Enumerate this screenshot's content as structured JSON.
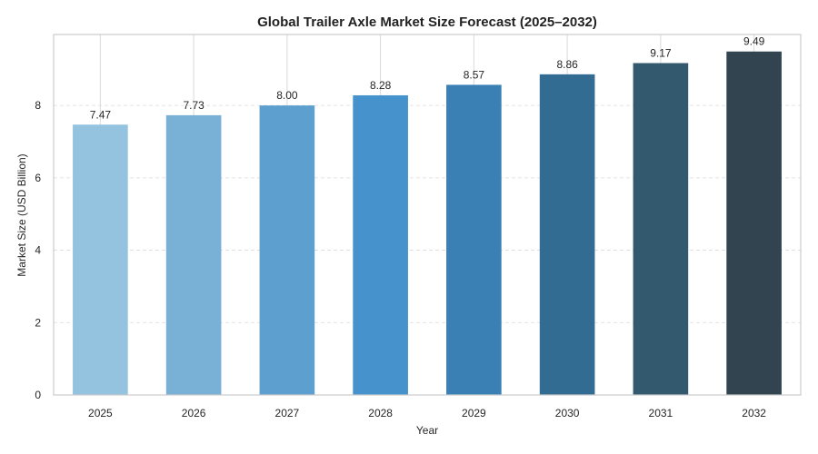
{
  "chart_data": {
    "type": "bar",
    "title": "Global Trailer Axle Market Size Forecast (2025–2032)",
    "xlabel": "Year",
    "ylabel": "Market Size (USD Billion)",
    "categories": [
      "2025",
      "2026",
      "2027",
      "2028",
      "2029",
      "2030",
      "2031",
      "2032"
    ],
    "values": [
      7.47,
      7.73,
      8.0,
      8.28,
      8.57,
      8.86,
      9.17,
      9.49
    ],
    "data_labels": [
      "7.47",
      "7.73",
      "8.00",
      "8.28",
      "8.57",
      "8.86",
      "9.17",
      "9.49"
    ],
    "ylim": [
      0,
      9.96
    ],
    "yticks": [
      0,
      2,
      4,
      6,
      8
    ],
    "ytick_labels": [
      "0",
      "2",
      "4",
      "6",
      "8"
    ],
    "grid": true,
    "colors": [
      "#94c3e0",
      "#78b0d6",
      "#5da0cf",
      "#4692cc",
      "#3a80b5",
      "#336c93",
      "#33596f",
      "#324450"
    ],
    "frame_color": "#cccccc",
    "grid_color": "#d9d9d9"
  }
}
